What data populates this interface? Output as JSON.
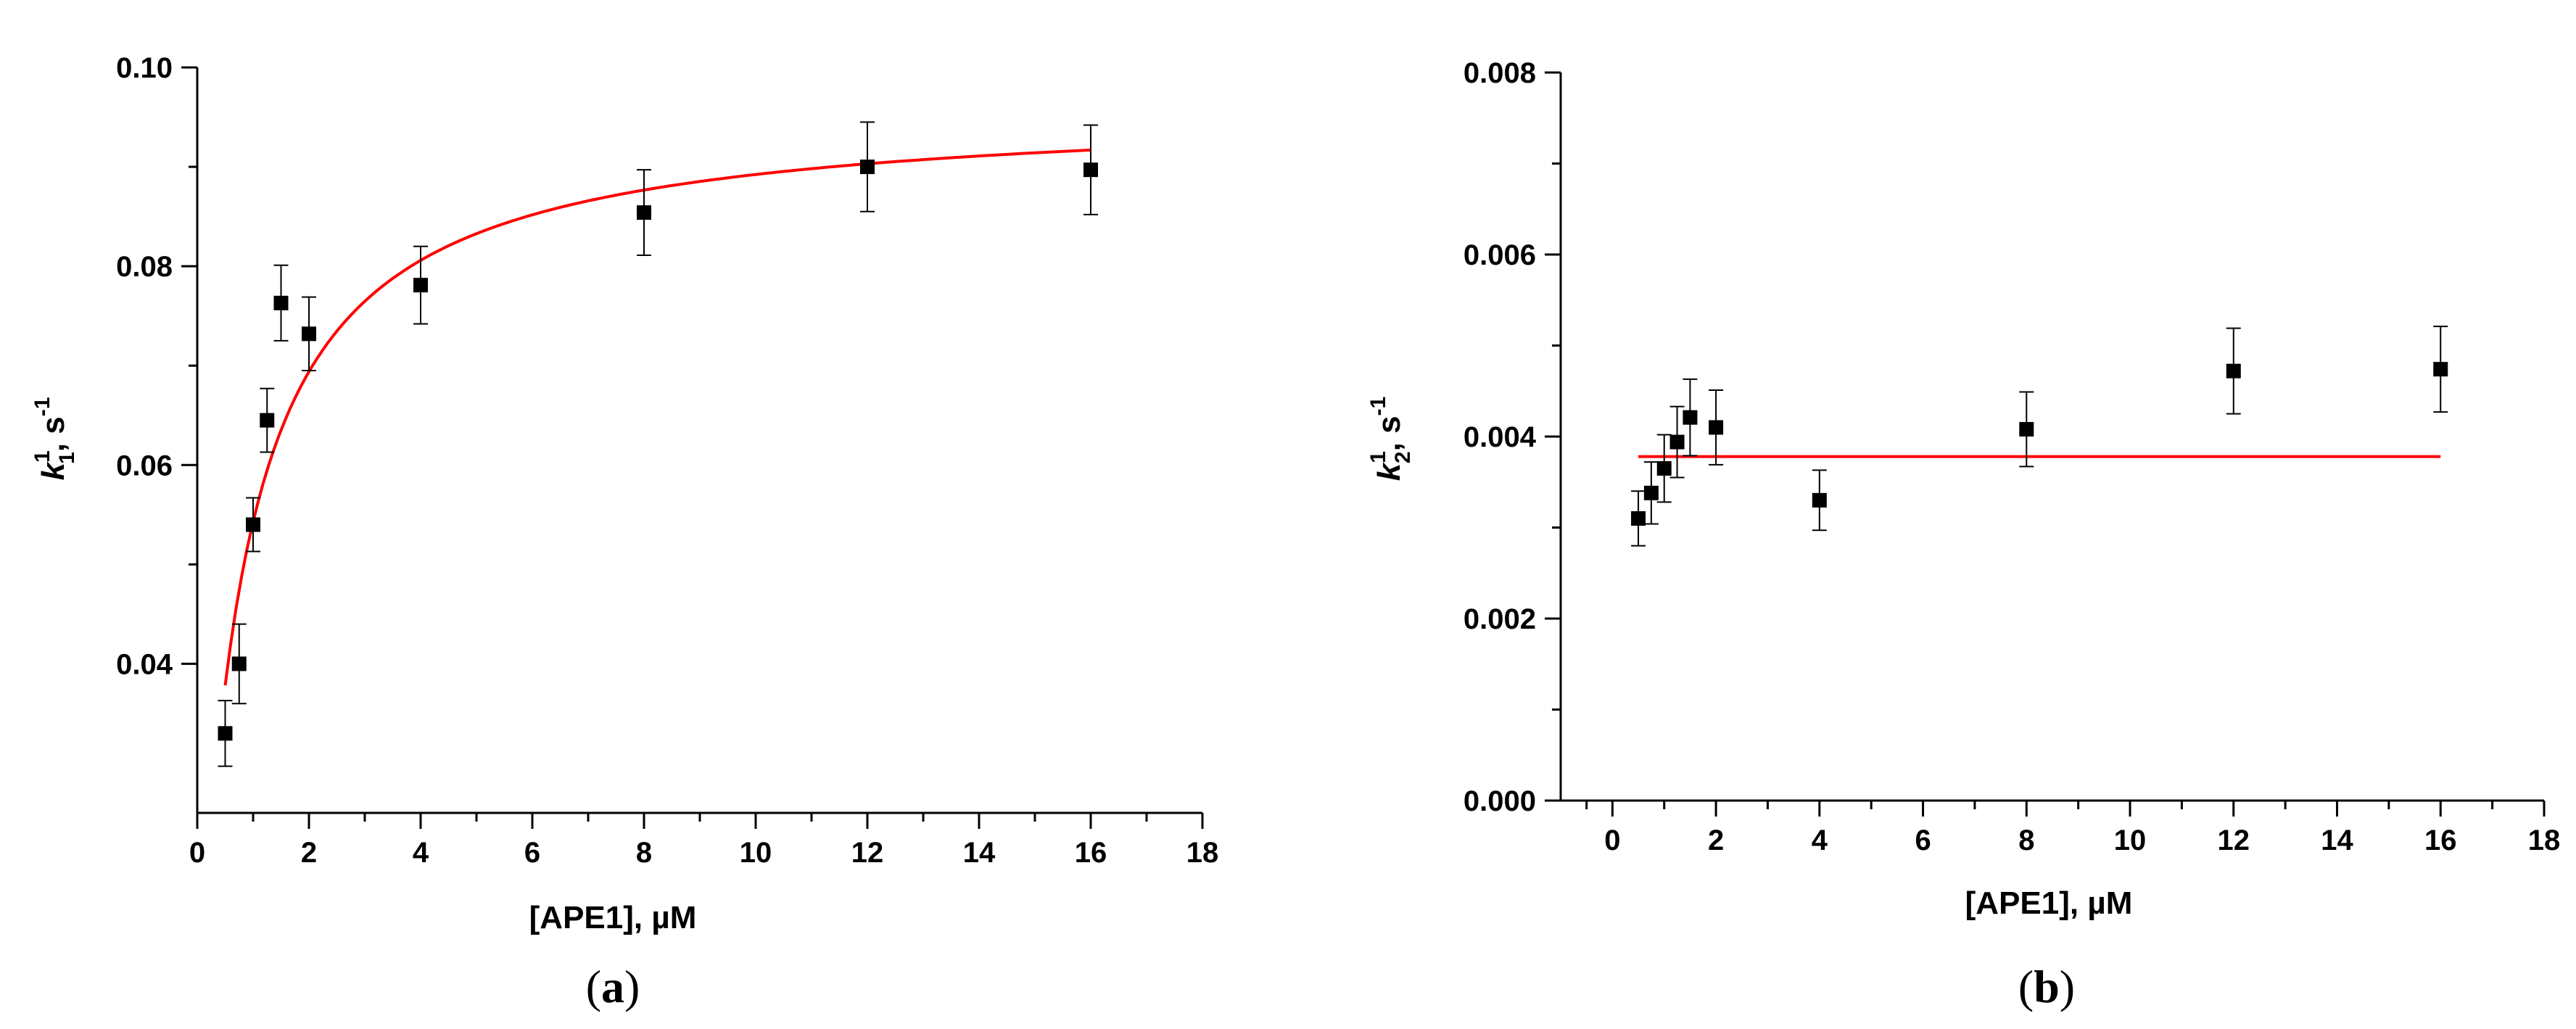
{
  "chart_data": [
    {
      "type": "scatter",
      "panel": "a",
      "caption": {
        "open": "(",
        "letter": "a",
        "close": ")"
      },
      "xlabel": "[APE1],  µM",
      "ylabel": {
        "k": "k",
        "sup": "1",
        "sub": "1",
        "unit": ", s",
        "unit_sup": "-1"
      },
      "xlim": [
        0,
        18
      ],
      "ylim": [
        0.025,
        0.1
      ],
      "xticks": [
        0,
        2,
        4,
        6,
        8,
        10,
        12,
        14,
        16,
        18
      ],
      "xtick_labels": [
        "0",
        "2",
        "4",
        "6",
        "8",
        "10",
        "12",
        "14",
        "16",
        "18"
      ],
      "yticks": [
        0.04,
        0.06,
        0.08,
        0.1
      ],
      "ytick_labels": [
        "0.04",
        "0.06",
        "0.08",
        "0.10"
      ],
      "points": [
        {
          "x": 0.5,
          "y": 0.033,
          "err": 0.0033
        },
        {
          "x": 0.75,
          "y": 0.04,
          "err": 0.004
        },
        {
          "x": 1.0,
          "y": 0.054,
          "err": 0.0027
        },
        {
          "x": 1.25,
          "y": 0.0645,
          "err": 0.0032
        },
        {
          "x": 1.5,
          "y": 0.0763,
          "err": 0.0038
        },
        {
          "x": 2.0,
          "y": 0.0732,
          "err": 0.0037
        },
        {
          "x": 4.0,
          "y": 0.0781,
          "err": 0.0039
        },
        {
          "x": 8.0,
          "y": 0.0854,
          "err": 0.0043
        },
        {
          "x": 12.0,
          "y": 0.09,
          "err": 0.0045
        },
        {
          "x": 16.0,
          "y": 0.0897,
          "err": 0.0045
        }
      ],
      "fit": {
        "model": "hyperbolic",
        "vmax": 0.0961,
        "kd": 0.77,
        "x_range": [
          0.5,
          16
        ],
        "color": "#ff0000"
      }
    },
    {
      "type": "scatter",
      "panel": "b",
      "caption": {
        "open": "(",
        "letter": "b",
        "close": ")"
      },
      "xlabel": "[APE1],  µM",
      "ylabel": {
        "k": "k",
        "sup": "1",
        "sub": "2",
        "unit": ", s",
        "unit_sup": "-1"
      },
      "xlim": [
        -1,
        18
      ],
      "ylim": [
        0,
        0.008
      ],
      "xticks": [
        0,
        2,
        4,
        6,
        8,
        10,
        12,
        14,
        16,
        18
      ],
      "xtick_labels": [
        "0",
        "2",
        "4",
        "6",
        "8",
        "10",
        "12",
        "14",
        "16",
        "18"
      ],
      "yticks": [
        0,
        0.002,
        0.004,
        0.006,
        0.008
      ],
      "ytick_labels": [
        "0.000",
        "0.002",
        "0.004",
        "0.006",
        "0.008"
      ],
      "points": [
        {
          "x": 0.5,
          "y": 0.0031,
          "err": 0.0003
        },
        {
          "x": 0.75,
          "y": 0.00338,
          "err": 0.00034
        },
        {
          "x": 1.0,
          "y": 0.00365,
          "err": 0.00037
        },
        {
          "x": 1.25,
          "y": 0.00394,
          "err": 0.00039
        },
        {
          "x": 1.5,
          "y": 0.00421,
          "err": 0.00042
        },
        {
          "x": 2.0,
          "y": 0.0041,
          "err": 0.00041
        },
        {
          "x": 4.0,
          "y": 0.0033,
          "err": 0.00033
        },
        {
          "x": 8.0,
          "y": 0.00408,
          "err": 0.00041
        },
        {
          "x": 12.0,
          "y": 0.00472,
          "err": 0.00047
        },
        {
          "x": 16.0,
          "y": 0.00474,
          "err": 0.00047
        }
      ],
      "fit": {
        "model": "constant",
        "value": 0.00378,
        "x_range": [
          0.5,
          16
        ],
        "color": "#ff0000"
      }
    }
  ]
}
